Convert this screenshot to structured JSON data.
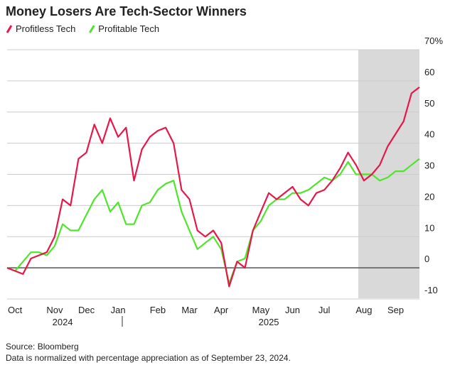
{
  "chart_data": {
    "type": "line",
    "title": "Money Losers Are Tech-Sector Winners",
    "categories": [
      null,
      "Oct",
      null,
      null,
      null,
      null,
      "Nov",
      null,
      null,
      null,
      "Dec",
      null,
      null,
      null,
      "Jan",
      null,
      null,
      null,
      null,
      "Feb",
      null,
      null,
      null,
      "Mar",
      null,
      null,
      null,
      "Apr",
      null,
      null,
      null,
      null,
      "May",
      null,
      null,
      null,
      "Jun",
      null,
      null,
      null,
      "Jul",
      null,
      null,
      null,
      null,
      "Aug",
      null,
      null,
      null,
      "Sep",
      null,
      null,
      null
    ],
    "year_labels": [
      null,
      null,
      null,
      null,
      null,
      null,
      null,
      "2024",
      null,
      null,
      null,
      null,
      null,
      null,
      null,
      null,
      null,
      null,
      null,
      null,
      null,
      null,
      null,
      null,
      null,
      null,
      null,
      null,
      null,
      null,
      null,
      null,
      null,
      "2025",
      null,
      null,
      null,
      null,
      null,
      null,
      null,
      null,
      null,
      null,
      null,
      null,
      null,
      null,
      null,
      null,
      null,
      null,
      null
    ],
    "series": [
      {
        "name": "Profitless Tech",
        "color": "#e8174a",
        "values": [
          0,
          -1,
          -2,
          3,
          4,
          5,
          10,
          22,
          20,
          35,
          37,
          46,
          40,
          48,
          42,
          45,
          28,
          38,
          42,
          44,
          45,
          40,
          25,
          22,
          12,
          10,
          12,
          8,
          -6,
          2,
          0,
          12,
          18,
          24,
          22,
          24,
          26,
          22,
          20,
          24,
          25,
          28,
          32,
          37,
          33,
          28,
          30,
          33,
          39,
          43,
          47,
          56,
          58
        ]
      },
      {
        "name": "Profitable Tech",
        "color": "#4ee62a",
        "values": [
          0,
          -1,
          2,
          5,
          5,
          4,
          7,
          14,
          12,
          12,
          17,
          22,
          25,
          18,
          21,
          14,
          14,
          20,
          21,
          25,
          27,
          28,
          18,
          12,
          6,
          8,
          10,
          6,
          -5,
          2,
          3,
          12,
          15,
          20,
          22,
          22,
          24,
          24,
          25,
          27,
          29,
          28,
          30,
          34,
          30,
          30,
          30,
          28,
          29,
          31,
          31,
          33,
          35
        ]
      }
    ],
    "ylim": [
      -10,
      70
    ],
    "yticks": [
      -10,
      0,
      10,
      20,
      30,
      40,
      50,
      60,
      {
        "value": 70,
        "label": "70%"
      }
    ],
    "grid": true,
    "source": "Source: Bloomberg",
    "note": "Data is normalized with percentage appreciation as of September 23, 2024."
  }
}
